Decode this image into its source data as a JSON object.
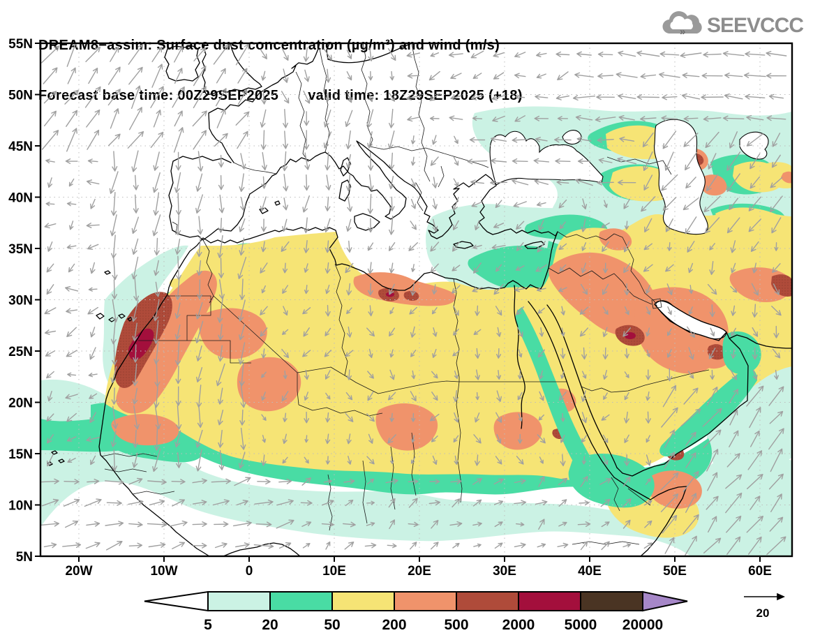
{
  "title": {
    "line1": "DREAM8−assim: Surface dust concentration (µg/m³) and wind (m/s)",
    "base_time": "Forecast base time: 00Z29SEP2025",
    "valid_time": "valid time: 18Z29SEP2025 (+18)"
  },
  "logo": {
    "text": "SEEVCCC"
  },
  "colors": {
    "cyan": "#CBF2E4",
    "green": "#49DCA4",
    "yellow": "#F6E475",
    "orange": "#F0936B",
    "brick": "#AF4B3A",
    "maroon": "#A30F3C",
    "brown": "#4A3423",
    "purple": "#A687C8",
    "white": "#FFFFFF",
    "arrow_gray": "#a0a0a0",
    "grid_gray": "#bdbdbd",
    "logo_gray": "#9a9a9a"
  },
  "axes": {
    "lat": [
      {
        "label": "55N",
        "deg": 55
      },
      {
        "label": "50N",
        "deg": 50
      },
      {
        "label": "45N",
        "deg": 45
      },
      {
        "label": "40N",
        "deg": 40
      },
      {
        "label": "35N",
        "deg": 35
      },
      {
        "label": "30N",
        "deg": 30
      },
      {
        "label": "25N",
        "deg": 25
      },
      {
        "label": "20N",
        "deg": 20
      },
      {
        "label": "15N",
        "deg": 15
      },
      {
        "label": "10N",
        "deg": 10
      },
      {
        "label": "5N",
        "deg": 5
      }
    ],
    "lon": [
      {
        "label": "20W",
        "deg": -20
      },
      {
        "label": "10W",
        "deg": -10
      },
      {
        "label": "0",
        "deg": 0
      },
      {
        "label": "10E",
        "deg": 10
      },
      {
        "label": "20E",
        "deg": 20
      },
      {
        "label": "30E",
        "deg": 30
      },
      {
        "label": "40E",
        "deg": 40
      },
      {
        "label": "50E",
        "deg": 50
      },
      {
        "label": "60E",
        "deg": 60
      }
    ]
  },
  "chart_data": {
    "type": "map-contour",
    "variable": "Surface dust concentration",
    "units": "µg/m³",
    "model": "DREAM8-assim",
    "forecast_base_time": "00Z29SEP2025",
    "valid_time": "18Z29SEP2025",
    "forecast_hour": "+18",
    "extent": {
      "lon_min": -24.5,
      "lon_max": 63.8,
      "lat_min": 5,
      "lat_max": 55
    },
    "levels": [
      5,
      20,
      50,
      200,
      500,
      2000,
      5000,
      20000
    ],
    "palette": [
      "#FFFFFF",
      "#CBF2E4",
      "#49DCA4",
      "#F6E475",
      "#F0936B",
      "#AF4B3A",
      "#A30F3C",
      "#4A3423",
      "#A687C8"
    ],
    "wind_units": "m/s",
    "wind_reference": {
      "speed": 20,
      "label": "20"
    },
    "wind_zones": [
      [
        808,
        62,
        327,
        112,
        178,
        26,
        10
      ],
      [
        570,
        62,
        238,
        118,
        -165,
        16,
        25
      ],
      [
        360,
        62,
        212,
        106,
        -80,
        16,
        25
      ],
      [
        58,
        62,
        302,
        146,
        58,
        30,
        14
      ],
      [
        660,
        174,
        248,
        106,
        172,
        22,
        12
      ],
      [
        908,
        174,
        227,
        168,
        -128,
        26,
        15
      ],
      [
        296,
        168,
        276,
        174,
        -95,
        22,
        18
      ],
      [
        640,
        280,
        172,
        150,
        -140,
        16,
        30
      ],
      [
        812,
        300,
        323,
        100,
        -120,
        15,
        30
      ],
      [
        150,
        208,
        212,
        474,
        -95,
        27,
        14
      ],
      [
        58,
        208,
        94,
        474,
        -150,
        15,
        45
      ],
      [
        302,
        342,
        340,
        100,
        -115,
        14,
        30
      ],
      [
        58,
        682,
        362,
        112,
        12,
        22,
        18
      ],
      [
        420,
        682,
        518,
        112,
        28,
        14,
        35
      ],
      [
        938,
        542,
        197,
        252,
        52,
        30,
        12
      ],
      [
        938,
        342,
        197,
        200,
        -80,
        15,
        40
      ],
      [
        302,
        442,
        636,
        240,
        -95,
        13,
        50
      ]
    ],
    "wind_default_zone": [
      -95,
      14,
      40
    ]
  },
  "colorbar": {
    "labels": [
      "5",
      "20",
      "50",
      "200",
      "500",
      "2000",
      "5000",
      "20000"
    ],
    "segment_colors": [
      "#CBF2E4",
      "#49DCA4",
      "#F6E475",
      "#F0936B",
      "#AF4B3A",
      "#A30F3C",
      "#4A3423"
    ],
    "under_color": "#FFFFFF",
    "over_color": "#A687C8"
  }
}
